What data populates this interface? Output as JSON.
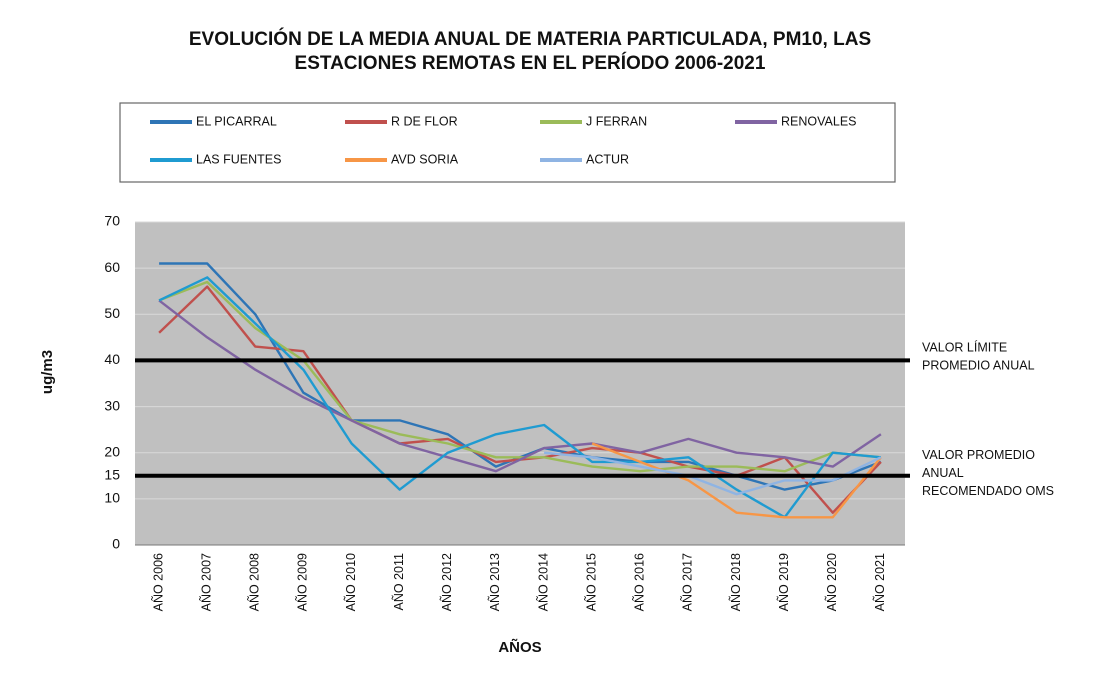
{
  "chart_data": {
    "type": "line",
    "title": [
      "EVOLUCIÓN DE LA MEDIA ANUAL DE MATERIA PARTICULADA, PM10, LAS",
      "ESTACIONES REMOTAS EN EL PERÍODO 2006-2021"
    ],
    "x_label": "AÑOS",
    "y_label": "ug/m3",
    "categories": [
      "AÑO 2006",
      "AÑO 2007",
      "AÑO 2008",
      "AÑO 2009",
      "AÑO 2010",
      "AÑO 2011",
      "AÑO 2012",
      "AÑO 2013",
      "AÑO 2014",
      "AÑO 2015",
      "AÑO 2016",
      "AÑO 2017",
      "AÑO 2018",
      "AÑO 2019",
      "AÑO 2020",
      "AÑO 2021"
    ],
    "ylim": [
      0,
      70
    ],
    "yticks": [
      0,
      10,
      15,
      20,
      30,
      40,
      50,
      60,
      70
    ],
    "grid": true,
    "series": [
      {
        "name": "EL PICARRAL",
        "color": "#2e75b6",
        "values": [
          61,
          61,
          50,
          33,
          27,
          27,
          24,
          17,
          21,
          19,
          18,
          18,
          15,
          12,
          14,
          18
        ]
      },
      {
        "name": "R  DE FLOR",
        "color": "#c0504d",
        "values": [
          46,
          56,
          43,
          42,
          27,
          22,
          23,
          18,
          19,
          21,
          20,
          17,
          15,
          19,
          7,
          18
        ]
      },
      {
        "name": "J  FERRAN",
        "color": "#9bbb59",
        "values": [
          53,
          57,
          47,
          40,
          27,
          24,
          22,
          19,
          19,
          17,
          16,
          17,
          17,
          16,
          20,
          19
        ]
      },
      {
        "name": "RENOVALES",
        "color": "#8064a2",
        "values": [
          53,
          45,
          38,
          32,
          27,
          22,
          19,
          16,
          21,
          22,
          20,
          23,
          20,
          19,
          17,
          24
        ]
      },
      {
        "name": "LAS FUENTES",
        "color": "#1f9bd1",
        "values": [
          53,
          58,
          48,
          38,
          22,
          12,
          20,
          24,
          26,
          18,
          18,
          19,
          12,
          6,
          20,
          19
        ]
      },
      {
        "name": "AVD  SORIA",
        "color": "#f79646",
        "values": [
          null,
          null,
          null,
          null,
          null,
          null,
          null,
          null,
          null,
          22,
          18,
          14,
          7,
          6,
          6,
          19
        ]
      },
      {
        "name": "ACTUR",
        "color": "#8fb4e3",
        "values": [
          null,
          null,
          null,
          null,
          null,
          null,
          null,
          null,
          20,
          19,
          17,
          15,
          11,
          14,
          14,
          19
        ]
      }
    ],
    "reference_lines": [
      {
        "value": 40,
        "label": [
          "VALOR LÍMITE",
          "PROMEDIO ANUAL"
        ]
      },
      {
        "value": 15,
        "label": [
          "VALOR PROMEDIO",
          "ANUAL",
          "RECOMENDADO OMS"
        ]
      }
    ]
  }
}
